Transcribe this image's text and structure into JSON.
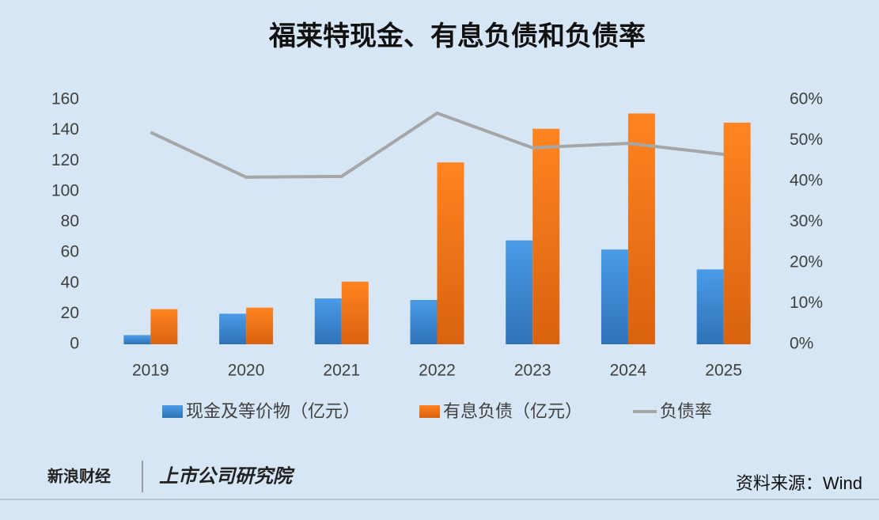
{
  "chart_data": {
    "type": "bar-line",
    "title": "福莱特现金、有息负债和负债率",
    "categories": [
      "2019",
      "2020",
      "2021",
      "2022",
      "2023",
      "2024",
      "2025"
    ],
    "series": [
      {
        "name": "现金及等价物（亿元）",
        "color": "#3b8ad8",
        "type": "bar",
        "values": [
          6,
          20,
          30,
          29,
          68,
          62,
          49
        ]
      },
      {
        "name": "有息负债（亿元）",
        "color": "#f47b1c",
        "type": "bar",
        "values": [
          23,
          24,
          41,
          119,
          141,
          151,
          145
        ]
      },
      {
        "name": "负债率",
        "color": "#a6a6a6",
        "type": "line",
        "axis": "y2",
        "values": [
          52,
          41,
          41.2,
          56.7,
          48.2,
          49.3,
          46.6
        ]
      }
    ],
    "ylim": [
      0,
      160
    ],
    "yticks": [
      0,
      20,
      40,
      60,
      80,
      100,
      120,
      140,
      160
    ],
    "y2lim": [
      0,
      60
    ],
    "y2ticks": [
      {
        "value": 0,
        "label": "0%"
      },
      {
        "value": 10,
        "label": "10%"
      },
      {
        "value": 20,
        "label": "20%"
      },
      {
        "value": 30,
        "label": "30%"
      },
      {
        "value": 40,
        "label": "40%"
      },
      {
        "value": 50,
        "label": "50%"
      },
      {
        "value": 60,
        "label": "60%"
      }
    ],
    "legend": "bottom"
  },
  "footer": {
    "logo_left": "新浪财经",
    "logo_right": "上市公司研究院",
    "source": "资料来源：Wind"
  }
}
